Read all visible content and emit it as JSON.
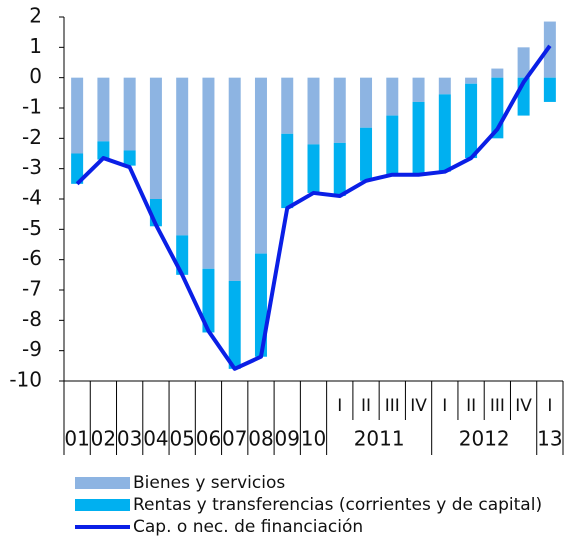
{
  "chart_data": {
    "type": "bar",
    "categories": [
      "01",
      "02",
      "03",
      "04",
      "05",
      "06",
      "07",
      "08",
      "09",
      "10",
      "I",
      "II",
      "III",
      "IV",
      "I",
      "II",
      "III",
      "IV",
      "I"
    ],
    "groups": [
      {
        "label": "2011",
        "span": [
          10,
          13
        ]
      },
      {
        "label": "2012",
        "span": [
          14,
          17
        ]
      },
      {
        "label": "13",
        "span": [
          18,
          18
        ]
      }
    ],
    "series": [
      {
        "name": "Bienes y servicios",
        "type": "bar",
        "color": "#8db4e2",
        "values": [
          -2.5,
          -2.1,
          -2.4,
          -4.0,
          -5.2,
          -6.3,
          -6.7,
          -5.8,
          -1.85,
          -2.2,
          -2.15,
          -1.65,
          -1.25,
          -0.8,
          -0.55,
          -0.2,
          0.3,
          1.0,
          1.85
        ]
      },
      {
        "name": "Rentas y transferencias (corrientes y de capital)",
        "type": "bar",
        "color": "#00b0f0",
        "values": [
          -1.0,
          -0.6,
          -0.5,
          -0.9,
          -1.3,
          -2.1,
          -2.9,
          -3.4,
          -2.45,
          -1.6,
          -1.75,
          -1.75,
          -1.95,
          -2.4,
          -2.55,
          -2.45,
          -2.0,
          -1.25,
          -0.8
        ]
      },
      {
        "name": "Cap. o nec. de financiación",
        "type": "line",
        "color": "#0a1fe6",
        "values": [
          -3.5,
          -2.65,
          -2.95,
          -4.85,
          -6.5,
          -8.35,
          -9.6,
          -9.2,
          -4.3,
          -3.8,
          -3.9,
          -3.4,
          -3.2,
          -3.2,
          -3.1,
          -2.65,
          -1.7,
          -0.15,
          1.05
        ]
      }
    ],
    "ylim": [
      -10,
      2
    ],
    "yticks": [
      -10,
      -9,
      -8,
      -7,
      -6,
      -5,
      -4,
      -3,
      -2,
      -1,
      0,
      1,
      2
    ]
  }
}
